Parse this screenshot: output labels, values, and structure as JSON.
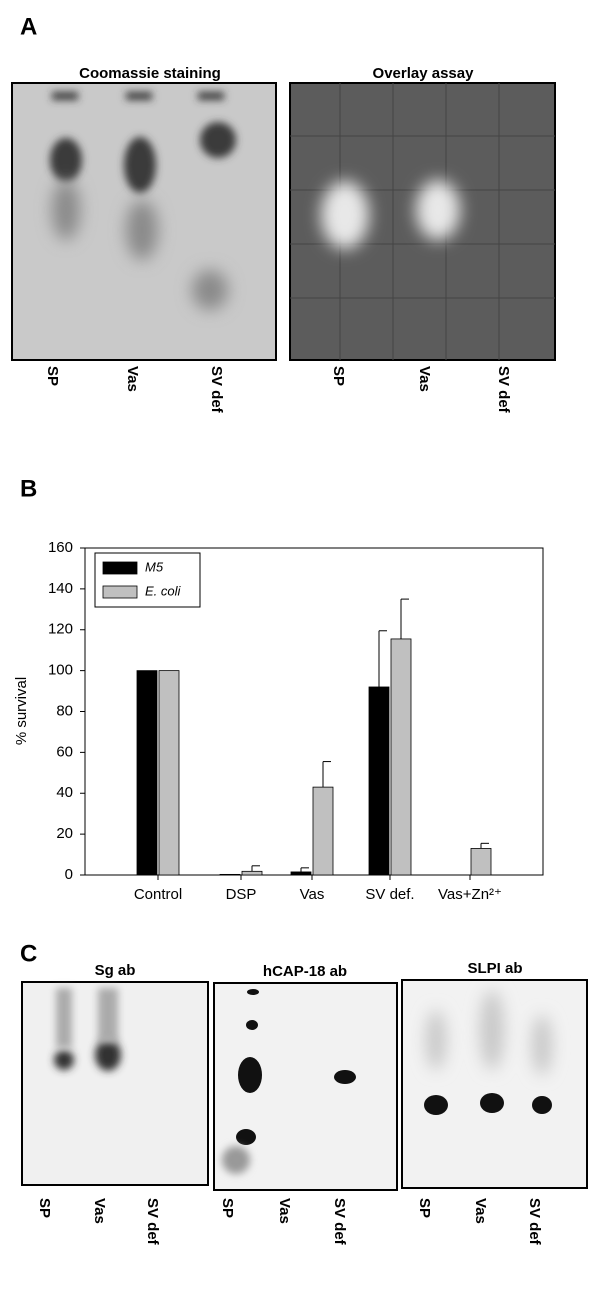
{
  "panel_a": {
    "label": "A",
    "gels": [
      {
        "title": "Coomassie staining",
        "lanes": [
          "SP",
          "Vas",
          "SV def"
        ]
      },
      {
        "title": "Overlay assay",
        "lanes": [
          "SP",
          "Vas",
          "SV def"
        ]
      }
    ]
  },
  "chart_data": {
    "panel_label": "B",
    "type": "bar",
    "categories": [
      "Control",
      "DSP",
      "Vas",
      "SV def.",
      "Vas+Zn²⁺"
    ],
    "ylabel": "% survival",
    "ylim": [
      0,
      160
    ],
    "yticks": [
      0,
      20,
      40,
      60,
      80,
      100,
      120,
      140,
      160
    ],
    "legend": "upper left",
    "series": [
      {
        "name": "M5",
        "color": "#000000",
        "values": [
          100,
          0.3,
          1.5,
          92,
          0
        ],
        "errors": [
          null,
          null,
          2,
          27.5,
          null
        ]
      },
      {
        "name": "E. coli",
        "color": "#c0c0c0",
        "values": [
          100,
          1.8,
          43,
          115.5,
          13
        ],
        "errors": [
          null,
          2.7,
          12.5,
          19.5,
          2.5
        ]
      }
    ]
  },
  "panel_c": {
    "label": "C",
    "gels": [
      {
        "title": "Sg ab",
        "lanes": [
          "SP",
          "Vas",
          "SV def"
        ]
      },
      {
        "title": "hCAP-18 ab",
        "lanes": [
          "SP",
          "Vas",
          "SV def"
        ]
      },
      {
        "title": "SLPI ab",
        "lanes": [
          "SP",
          "Vas",
          "SV def"
        ]
      }
    ]
  }
}
